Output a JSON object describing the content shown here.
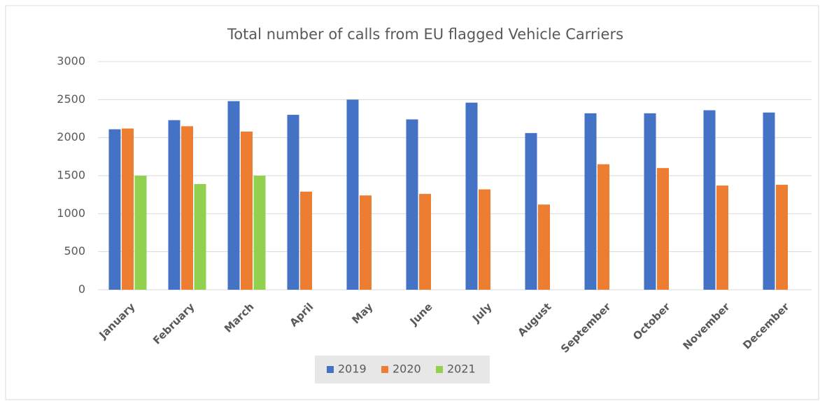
{
  "chart_data": {
    "type": "bar",
    "title": "Total number of calls from EU flagged Vehicle Carriers",
    "categories": [
      "January",
      "February",
      "March",
      "April",
      "May",
      "June",
      "July",
      "August",
      "September",
      "October",
      "November",
      "December"
    ],
    "series": [
      {
        "name": "2019",
        "color": "#4472c4",
        "values": [
          2110,
          2230,
          2480,
          2300,
          2500,
          2240,
          2460,
          2060,
          2320,
          2320,
          2360,
          2330
        ]
      },
      {
        "name": "2020",
        "color": "#ed7d31",
        "values": [
          2120,
          2150,
          2080,
          1290,
          1240,
          1260,
          1320,
          1120,
          1650,
          1600,
          1370,
          1380
        ]
      },
      {
        "name": "2021",
        "color": "#92d050",
        "values": [
          1500,
          1390,
          1500,
          null,
          null,
          null,
          null,
          null,
          null,
          null,
          null,
          null
        ]
      }
    ],
    "ylim": [
      0,
      3000
    ],
    "yticks": [
      0,
      500,
      1000,
      1500,
      2000,
      2500,
      3000
    ],
    "grid": true,
    "legend": "bottom"
  }
}
